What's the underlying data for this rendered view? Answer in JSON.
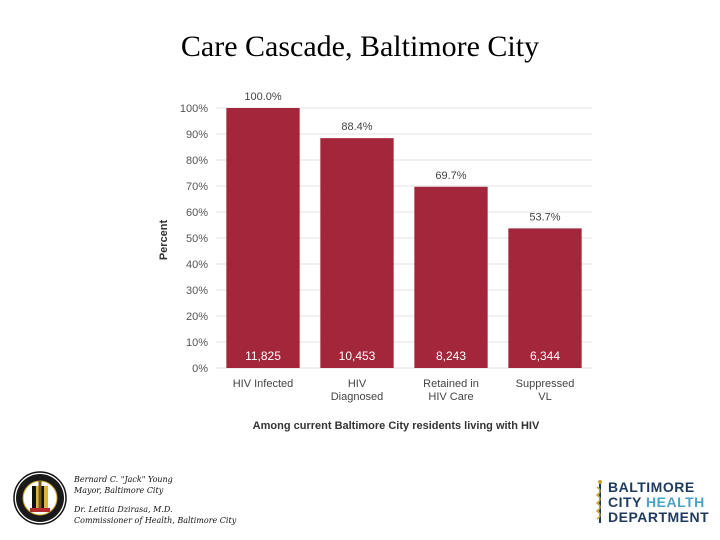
{
  "slide": {
    "title": "Care Cascade, Baltimore City"
  },
  "footer": {
    "mayor_name": "Bernard C. \"Jack\" Young",
    "mayor_title": "Mayor, Baltimore City",
    "commissioner_name": "Dr. Letitia Dzirasa, M.D.",
    "commissioner_title": "Commissioner of Health, Baltimore City"
  },
  "logo": {
    "line1": "BALTIMORE",
    "line2a": "CITY",
    "line2b": "HEALTH",
    "line3": "DEPARTMENT",
    "dark_color": "#1f3a5f",
    "accent_color": "#4aa3c8",
    "seal_text": "CITY OF BALTIMORE"
  },
  "chart_data": {
    "type": "bar",
    "categories": [
      [
        "HIV Infected"
      ],
      [
        "HIV",
        "Diagnosed"
      ],
      [
        "Retained in",
        "HIV Care"
      ],
      [
        "Suppressed",
        "VL"
      ]
    ],
    "values": [
      100.0,
      88.4,
      69.7,
      53.7
    ],
    "value_labels": [
      "100.0%",
      "88.4%",
      "69.7%",
      "53.7%"
    ],
    "counts": [
      "11,825",
      "10,453",
      "8,243",
      "6,344"
    ],
    "ylabel": "Percent",
    "xlabel": "Among current Baltimore City residents living with HIV",
    "ylim": [
      0,
      100
    ],
    "yticks": [
      0,
      10,
      20,
      30,
      40,
      50,
      60,
      70,
      80,
      90,
      100
    ],
    "tick_suffix": "%",
    "bar_color": "#a3263a",
    "grid": true,
    "grid_color": "#e3e3e3"
  }
}
